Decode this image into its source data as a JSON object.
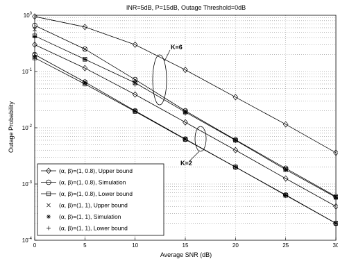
{
  "chart_data": {
    "type": "line",
    "title": "INR=5dB, P=15dB, Outage Threshold=0dB",
    "xlabel": "Average SNR (dB)",
    "ylabel": "Outage Probability",
    "xlim": [
      0,
      30
    ],
    "ylim": [
      0.0001,
      1
    ],
    "yscale": "log",
    "grid": true,
    "legend_position": "bottom-left",
    "x_ticks": [
      "0",
      "5",
      "10",
      "15",
      "20",
      "25",
      "30"
    ],
    "y_ticks": [
      {
        "base": "10",
        "exp": "0"
      },
      {
        "base": "10",
        "exp": "-1"
      },
      {
        "base": "10",
        "exp": "-2"
      },
      {
        "base": "10",
        "exp": "-3"
      },
      {
        "base": "10",
        "exp": "-4"
      }
    ],
    "annotations": [
      {
        "text": "K=6"
      },
      {
        "text": "K=2"
      }
    ],
    "x": [
      0,
      5,
      10,
      15,
      20,
      25,
      30
    ],
    "series": [
      {
        "name": "(α, β)=(1, 0.8), Upper bound",
        "marker": "diamond",
        "group": "K=6",
        "values": [
          0.95,
          0.62,
          0.3,
          0.107,
          0.035,
          0.0115,
          0.0036
        ]
      },
      {
        "name": "(α, β)=(1, 0.8), Simulation",
        "marker": "circle",
        "group": "K=6",
        "values": [
          0.66,
          0.25,
          0.072,
          0.02,
          0.0061,
          0.0019,
          0.0006
        ]
      },
      {
        "name": "(α, β)=(1, 0.8), Lower bound",
        "marker": "square",
        "group": "K=6",
        "values": [
          0.43,
          0.165,
          0.063,
          0.019,
          0.006,
          0.0018,
          0.00058
        ]
      },
      {
        "name": "(α, β)=(1, 0.8), Upper bound",
        "marker": "diamond",
        "group": "K=2",
        "values": [
          0.3,
          0.115,
          0.039,
          0.0125,
          0.004,
          0.00125,
          0.0004
        ]
      },
      {
        "name": "(α, β)=(1, 0.8), Simulation",
        "marker": "circle",
        "group": "K=2",
        "values": [
          0.2,
          0.065,
          0.02,
          0.0063,
          0.002,
          0.00064,
          0.0002
        ]
      },
      {
        "name": "(α, β)=(1, 0.8), Lower bound",
        "marker": "square",
        "group": "K=2",
        "values": [
          0.175,
          0.06,
          0.0195,
          0.0062,
          0.002,
          0.00063,
          0.0002
        ]
      },
      {
        "name": "(α, β)=(1, 1), Upper bound",
        "marker": "x",
        "group": "K=6",
        "values": [
          0.56,
          0.25,
          0.07,
          0.02,
          0.0061,
          0.0019,
          0.0006
        ]
      },
      {
        "name": "(α, β)=(1, 1), Simulation",
        "marker": "star",
        "group": "K=6",
        "values": [
          0.42,
          0.165,
          0.063,
          0.019,
          0.006,
          0.0018,
          0.00058
        ]
      },
      {
        "name": "(α, β)=(1, 1), Lower bound",
        "marker": "plus",
        "group": "K=6",
        "values": [
          0.42,
          0.165,
          0.058,
          0.018,
          0.0058,
          0.0018,
          0.00056
        ]
      },
      {
        "name": "(α, β)=(1, 1), Upper bound",
        "marker": "x",
        "group": "K=2",
        "values": [
          0.2,
          0.065,
          0.02,
          0.0063,
          0.002,
          0.00064,
          0.0002
        ]
      },
      {
        "name": "(α, β)=(1, 1), Simulation",
        "marker": "star",
        "group": "K=2",
        "values": [
          0.18,
          0.062,
          0.0198,
          0.0062,
          0.002,
          0.00063,
          0.0002
        ]
      },
      {
        "name": "(α, β)=(1, 1), Lower bound",
        "marker": "plus",
        "group": "K=2",
        "values": [
          0.17,
          0.06,
          0.0193,
          0.0061,
          0.002,
          0.00062,
          0.0002
        ]
      }
    ],
    "legend": [
      {
        "label": "(α, β)=(1, 0.8), Upper bound",
        "marker": "diamond",
        "line": true
      },
      {
        "label": "(α, β)=(1, 0.8), Simulation",
        "marker": "circle",
        "line": true
      },
      {
        "label": "(α, β)=(1, 0.8), Lower bound",
        "marker": "square",
        "line": true
      },
      {
        "label": "(α, β)=(1, 1), Upper bound",
        "marker": "x",
        "line": false
      },
      {
        "label": "(α, β)=(1, 1), Simulation",
        "marker": "star",
        "line": false
      },
      {
        "label": "(α, β)=(1, 1), Lower bound",
        "marker": "plus",
        "line": false
      }
    ]
  }
}
